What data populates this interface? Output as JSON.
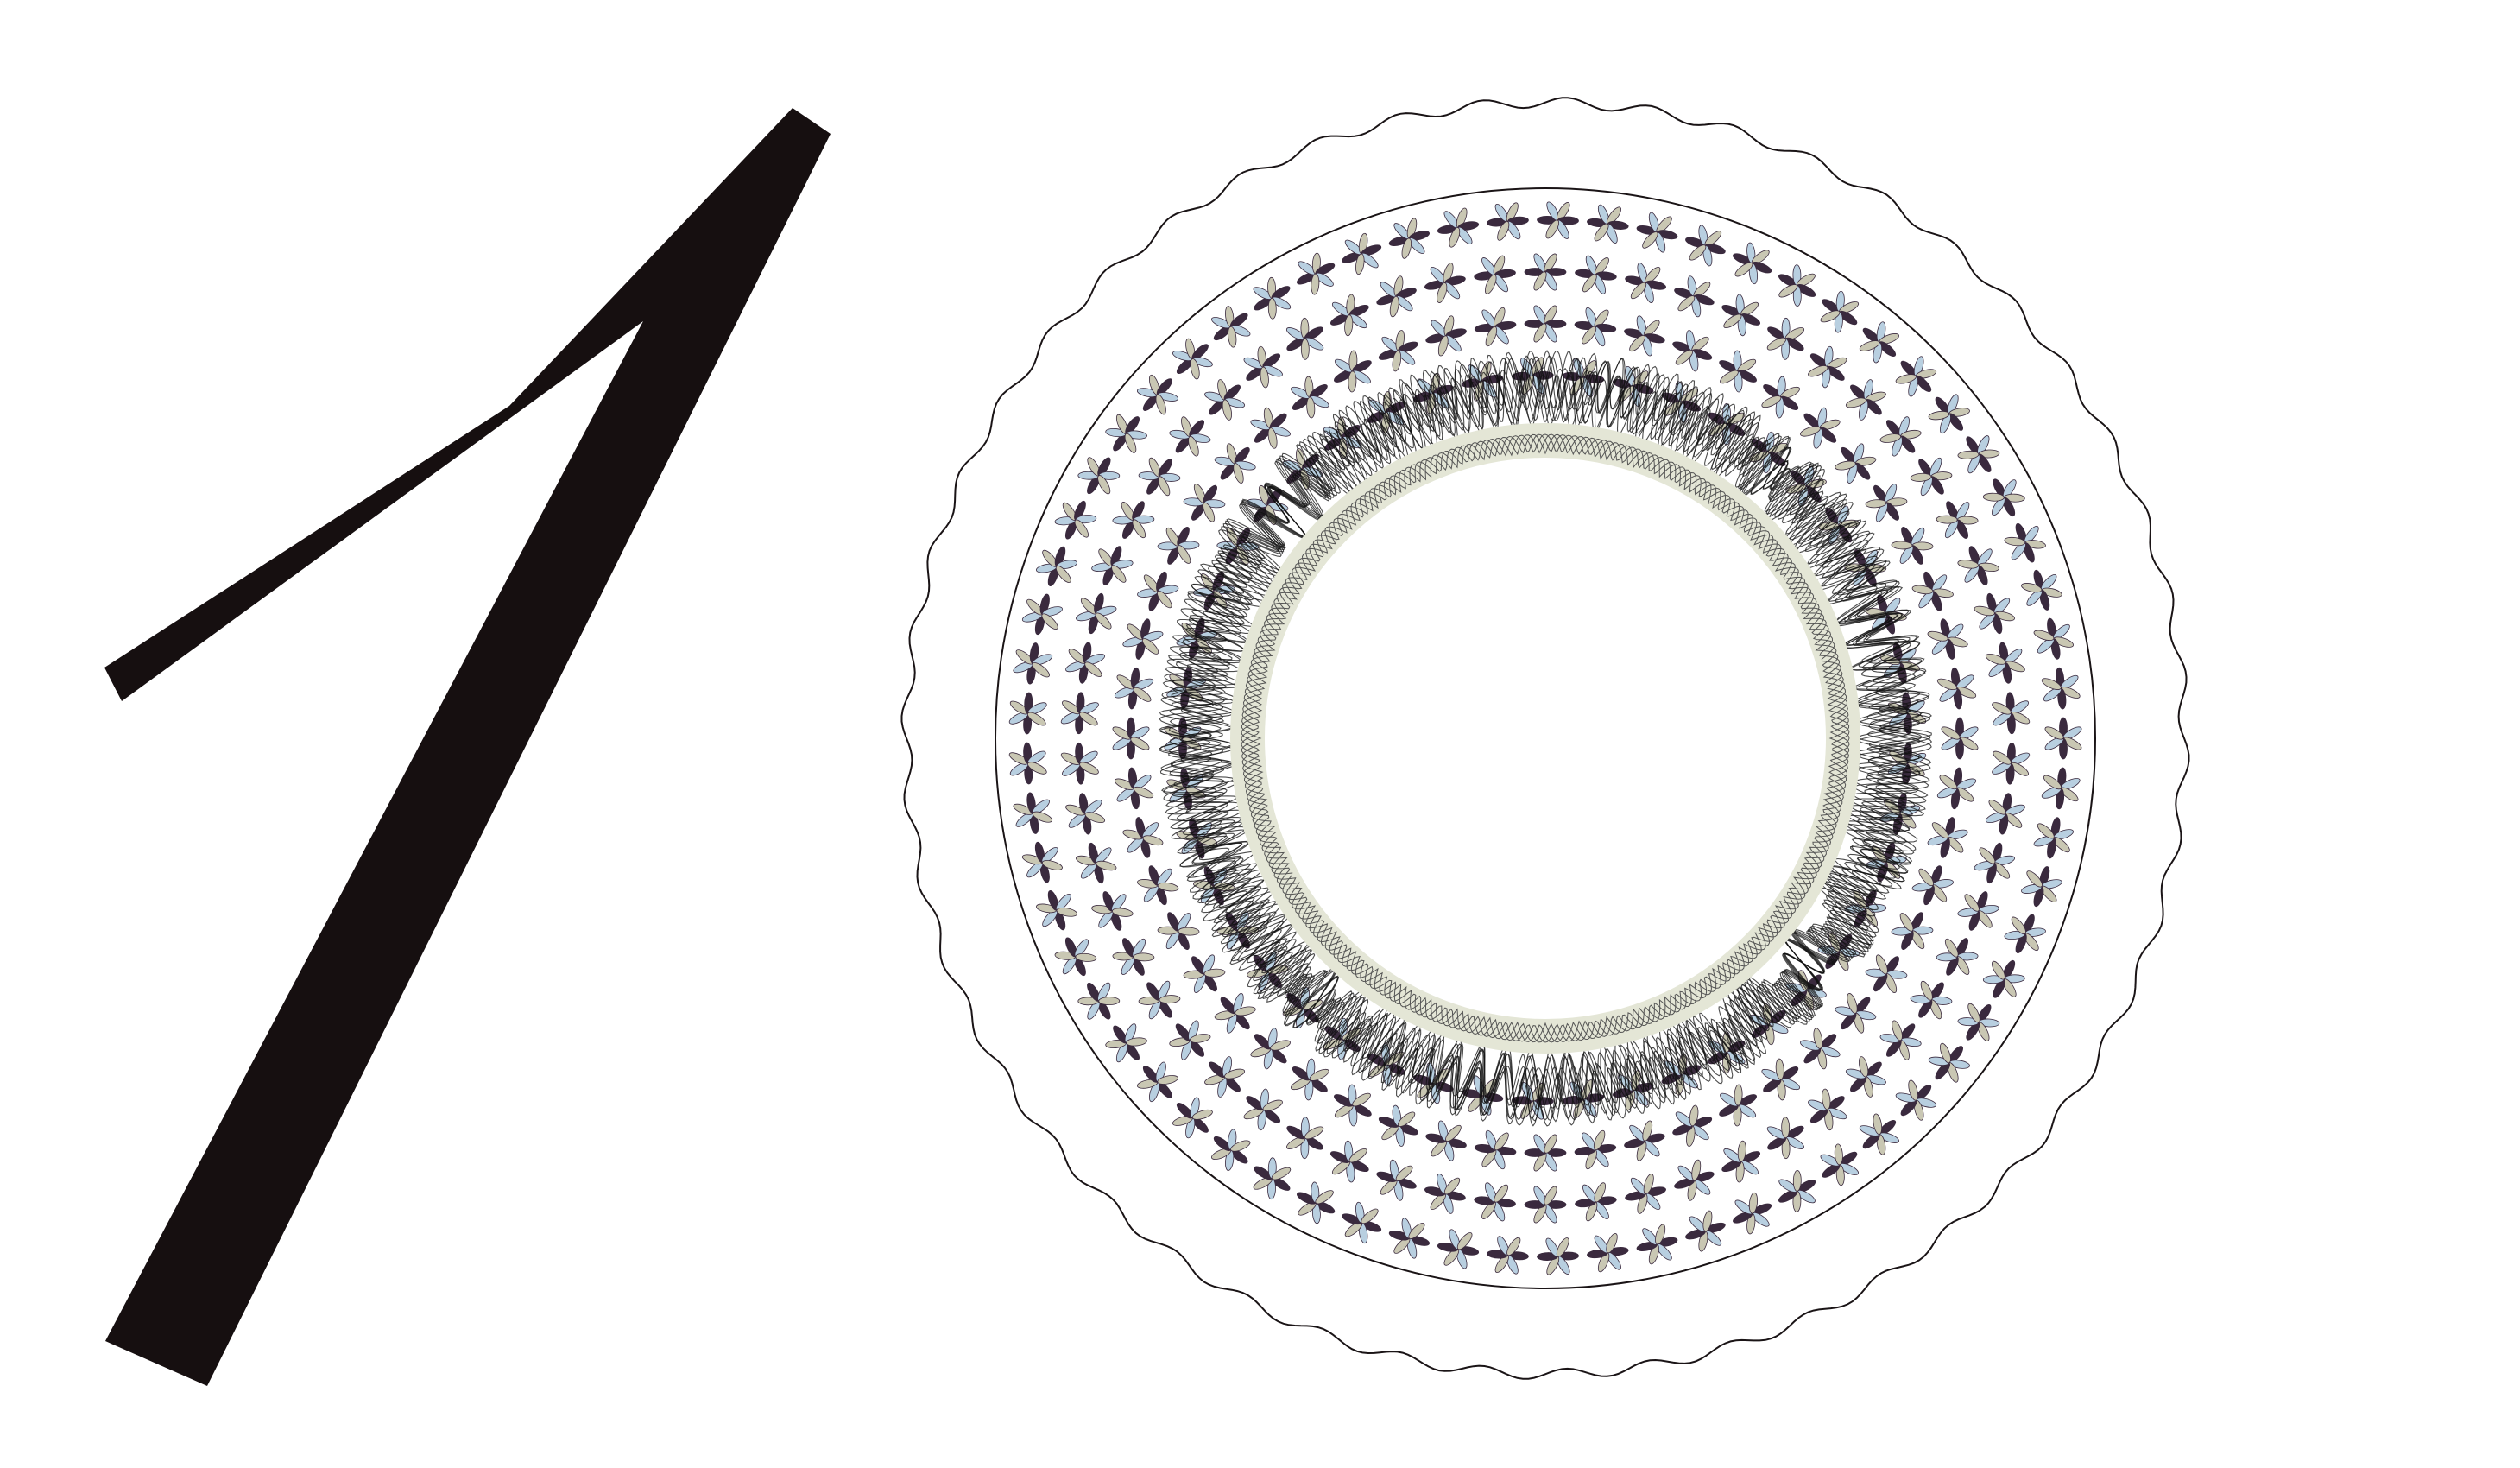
{
  "artwork": {
    "description_free": true,
    "numeral_stroke": "#160f10",
    "ring_colors": {
      "outline": "#1a1416",
      "petal_dark": "#3a2a3e",
      "petal_light": "#b8cfe0",
      "petal_accent": "#c9c7b3",
      "guilloche": "#111111",
      "inner_fill": "#e4e6d6"
    }
  }
}
